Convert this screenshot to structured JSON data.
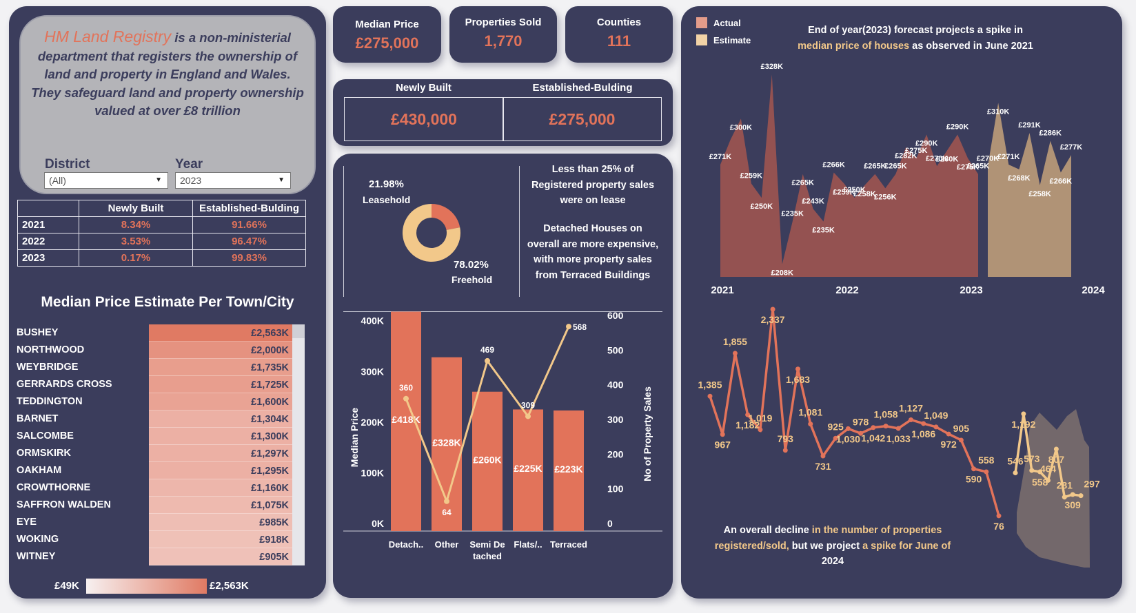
{
  "intro": {
    "brand": "HM Land Registry",
    "text": " is a non-ministerial department that registers the ownership of land and property in England and Wales. They safeguard land and property ownership valued at over £8 trillion"
  },
  "filters": {
    "district_label": "District",
    "district_value": "(All)",
    "year_label": "Year",
    "year_value": "2023"
  },
  "share_table": {
    "headers": [
      "",
      "Newly Built",
      "Established-Bulding"
    ],
    "rows": [
      {
        "year": "2021",
        "newly": "8.34%",
        "established": "91.66%"
      },
      {
        "year": "2022",
        "newly": "3.53%",
        "established": "96.47%"
      },
      {
        "year": "2023",
        "newly": "0.17%",
        "established": "99.83%"
      }
    ]
  },
  "towns": {
    "title": "Median Price Estimate Per Town/City",
    "items": [
      {
        "name": "BUSHEY",
        "value": "£2,563K",
        "num": 2563
      },
      {
        "name": "NORTHWOOD",
        "value": "£2,000K",
        "num": 2000
      },
      {
        "name": "WEYBRIDGE",
        "value": "£1,735K",
        "num": 1735
      },
      {
        "name": "GERRARDS CROSS",
        "value": "£1,725K",
        "num": 1725
      },
      {
        "name": "TEDDINGTON",
        "value": "£1,600K",
        "num": 1600
      },
      {
        "name": "BARNET",
        "value": "£1,304K",
        "num": 1304
      },
      {
        "name": "SALCOMBE",
        "value": "£1,300K",
        "num": 1300
      },
      {
        "name": "ORMSKIRK",
        "value": "£1,297K",
        "num": 1297
      },
      {
        "name": "OAKHAM",
        "value": "£1,295K",
        "num": 1295
      },
      {
        "name": "CROWTHORNE",
        "value": "£1,160K",
        "num": 1160
      },
      {
        "name": "SAFFRON WALDEN",
        "value": "£1,075K",
        "num": 1075
      },
      {
        "name": "EYE",
        "value": "£985K",
        "num": 985
      },
      {
        "name": "WOKING",
        "value": "£918K",
        "num": 918
      },
      {
        "name": "WITNEY",
        "value": "£905K",
        "num": 905
      }
    ],
    "legend_min": "£49K",
    "legend_max": "£2,563K"
  },
  "kpis": {
    "median_label": "Median Price",
    "median_value": "£275,000",
    "sold_label": "Properties Sold",
    "sold_value": "1,770",
    "counties_label": "Counties",
    "counties_value": "111"
  },
  "newly_vs_established": {
    "newly_label": "Newly Built",
    "newly_value": "£430,000",
    "est_label": "Established-Bulding",
    "est_value": "£275,000"
  },
  "tenure": {
    "leasehold_pct": "21.98%",
    "leasehold_label": "Leasehold",
    "freehold_pct": "78.02%",
    "freehold_label": "Freehold",
    "note1": "Less than 25% of Registered property sales were on lease",
    "note2": "Detached Houses on overall are more expensive, with more property sales from Terraced Buildings"
  },
  "colors": {
    "primary": "#e2735a",
    "secondary": "#f2c88a",
    "panel": "#3b3d5c"
  },
  "chart_data": [
    {
      "type": "pie",
      "labels": [
        "Leasehold",
        "Freehold"
      ],
      "values": [
        21.98,
        78.02
      ]
    },
    {
      "type": "bar",
      "categories": [
        "Detach..",
        "Other",
        "Semi De tached",
        "Flats/..",
        "Terraced"
      ],
      "series": [
        {
          "name": "Median Price",
          "values": [
            418000,
            328000,
            260000,
            225000,
            223000
          ],
          "labels": [
            "£418K",
            "£328K",
            "£260K",
            "£225K",
            "£223K"
          ]
        },
        {
          "name": "No of Property Sales",
          "values": [
            360,
            64,
            469,
            309,
            568
          ]
        }
      ],
      "ylabel": "Median Price",
      "y2label": "No of Property Sales",
      "ylim": [
        0,
        420000
      ],
      "y2lim": [
        0,
        600
      ],
      "yticks": [
        "0K",
        "100K",
        "200K",
        "300K",
        "400K"
      ],
      "y2ticks": [
        "0",
        "100",
        "200",
        "300",
        "400",
        "500",
        "600"
      ]
    },
    {
      "type": "area",
      "title_part1": "End of year(2023) forecast projects a spike in",
      "title_hl": "median price of houses",
      "title_part2": " as observed in June 2021",
      "legend": [
        "Actual",
        "Estimate"
      ],
      "x_ticks": [
        "2021",
        "2022",
        "2023",
        "2024"
      ],
      "actual_labels": [
        {
          "i": 0,
          "v": 271,
          "t": "£271K"
        },
        {
          "i": 2,
          "v": 300,
          "t": "£300K"
        },
        {
          "i": 3,
          "v": 259,
          "t": "£259K"
        },
        {
          "i": 4,
          "v": 250,
          "t": "£250K"
        },
        {
          "i": 5,
          "v": 328,
          "t": "£328K"
        },
        {
          "i": 6,
          "v": 208,
          "t": "£208K"
        },
        {
          "i": 7,
          "v": 235,
          "t": "£235K"
        },
        {
          "i": 8,
          "v": 265,
          "t": "£265K"
        },
        {
          "i": 9,
          "v": 243,
          "t": "£243K"
        },
        {
          "i": 10,
          "v": 235,
          "t": "£235K"
        },
        {
          "i": 11,
          "v": 266,
          "t": "£266K"
        },
        {
          "i": 12,
          "v": 259,
          "t": "£259K"
        },
        {
          "i": 13,
          "v": 250,
          "t": "£250K"
        },
        {
          "i": 14,
          "v": 258,
          "t": "£258K"
        },
        {
          "i": 15,
          "v": 265,
          "t": "£265K"
        },
        {
          "i": 16,
          "v": 256,
          "t": "£256K"
        },
        {
          "i": 17,
          "v": 265,
          "t": "£265K"
        },
        {
          "i": 18,
          "v": 282,
          "t": "£282K"
        },
        {
          "i": 19,
          "v": 275,
          "t": "£275K"
        },
        {
          "i": 20,
          "v": 290,
          "t": "£290K"
        },
        {
          "i": 21,
          "v": 270,
          "t": "£270K"
        },
        {
          "i": 22,
          "v": 280,
          "t": "£280K"
        },
        {
          "i": 23,
          "v": 290,
          "t": "£290K"
        },
        {
          "i": 24,
          "v": 275,
          "t": "£275K"
        },
        {
          "i": 25,
          "v": 265,
          "t": "£265K"
        }
      ],
      "actual_values": [
        271,
        287,
        300,
        259,
        250,
        328,
        208,
        235,
        265,
        243,
        235,
        266,
        259,
        250,
        258,
        265,
        256,
        265,
        282,
        275,
        290,
        270,
        280,
        290,
        275,
        265
      ],
      "estimate_values": [
        270,
        310,
        271,
        268,
        291,
        258,
        286,
        266,
        277
      ],
      "estimate_labels": [
        "£270K",
        "£310K",
        "£271K",
        "£268K",
        "£291K",
        "£258K",
        "£286K",
        "£266K",
        "£277K"
      ],
      "ylim": [
        200,
        335
      ]
    },
    {
      "type": "line",
      "note_part1": "An overall decline",
      "note_hl": " in the number of properties registered/sold,",
      "note_part2": " but we project ",
      "note_hl2": "a spike for June of",
      "note_part3": "2024",
      "actual_values": [
        1385,
        967,
        1855,
        1182,
        1019,
        2337,
        793,
        1683,
        1081,
        731,
        925,
        1030,
        978,
        1042,
        1058,
        1033,
        1127,
        1086,
        1049,
        972,
        905,
        590,
        558,
        76
      ],
      "actual_labels": [
        "1,385",
        "967",
        "1,855",
        "1,182",
        "1,019",
        "2,337",
        "793",
        "1,683",
        "1,081",
        "731",
        "925",
        "1,030",
        "978",
        "1,042",
        "1,058",
        "1,033",
        "1,127",
        "1,086",
        "1,049",
        "972",
        "905",
        "590",
        "558",
        "76"
      ],
      "estimate_values": [
        546,
        1192,
        573,
        558,
        464,
        807,
        281,
        309,
        297
      ],
      "estimate_labels": [
        "546",
        "1,192",
        "573",
        "558",
        "464",
        "807",
        "281",
        "309",
        "297"
      ],
      "ylim": [
        0,
        2400
      ]
    }
  ]
}
